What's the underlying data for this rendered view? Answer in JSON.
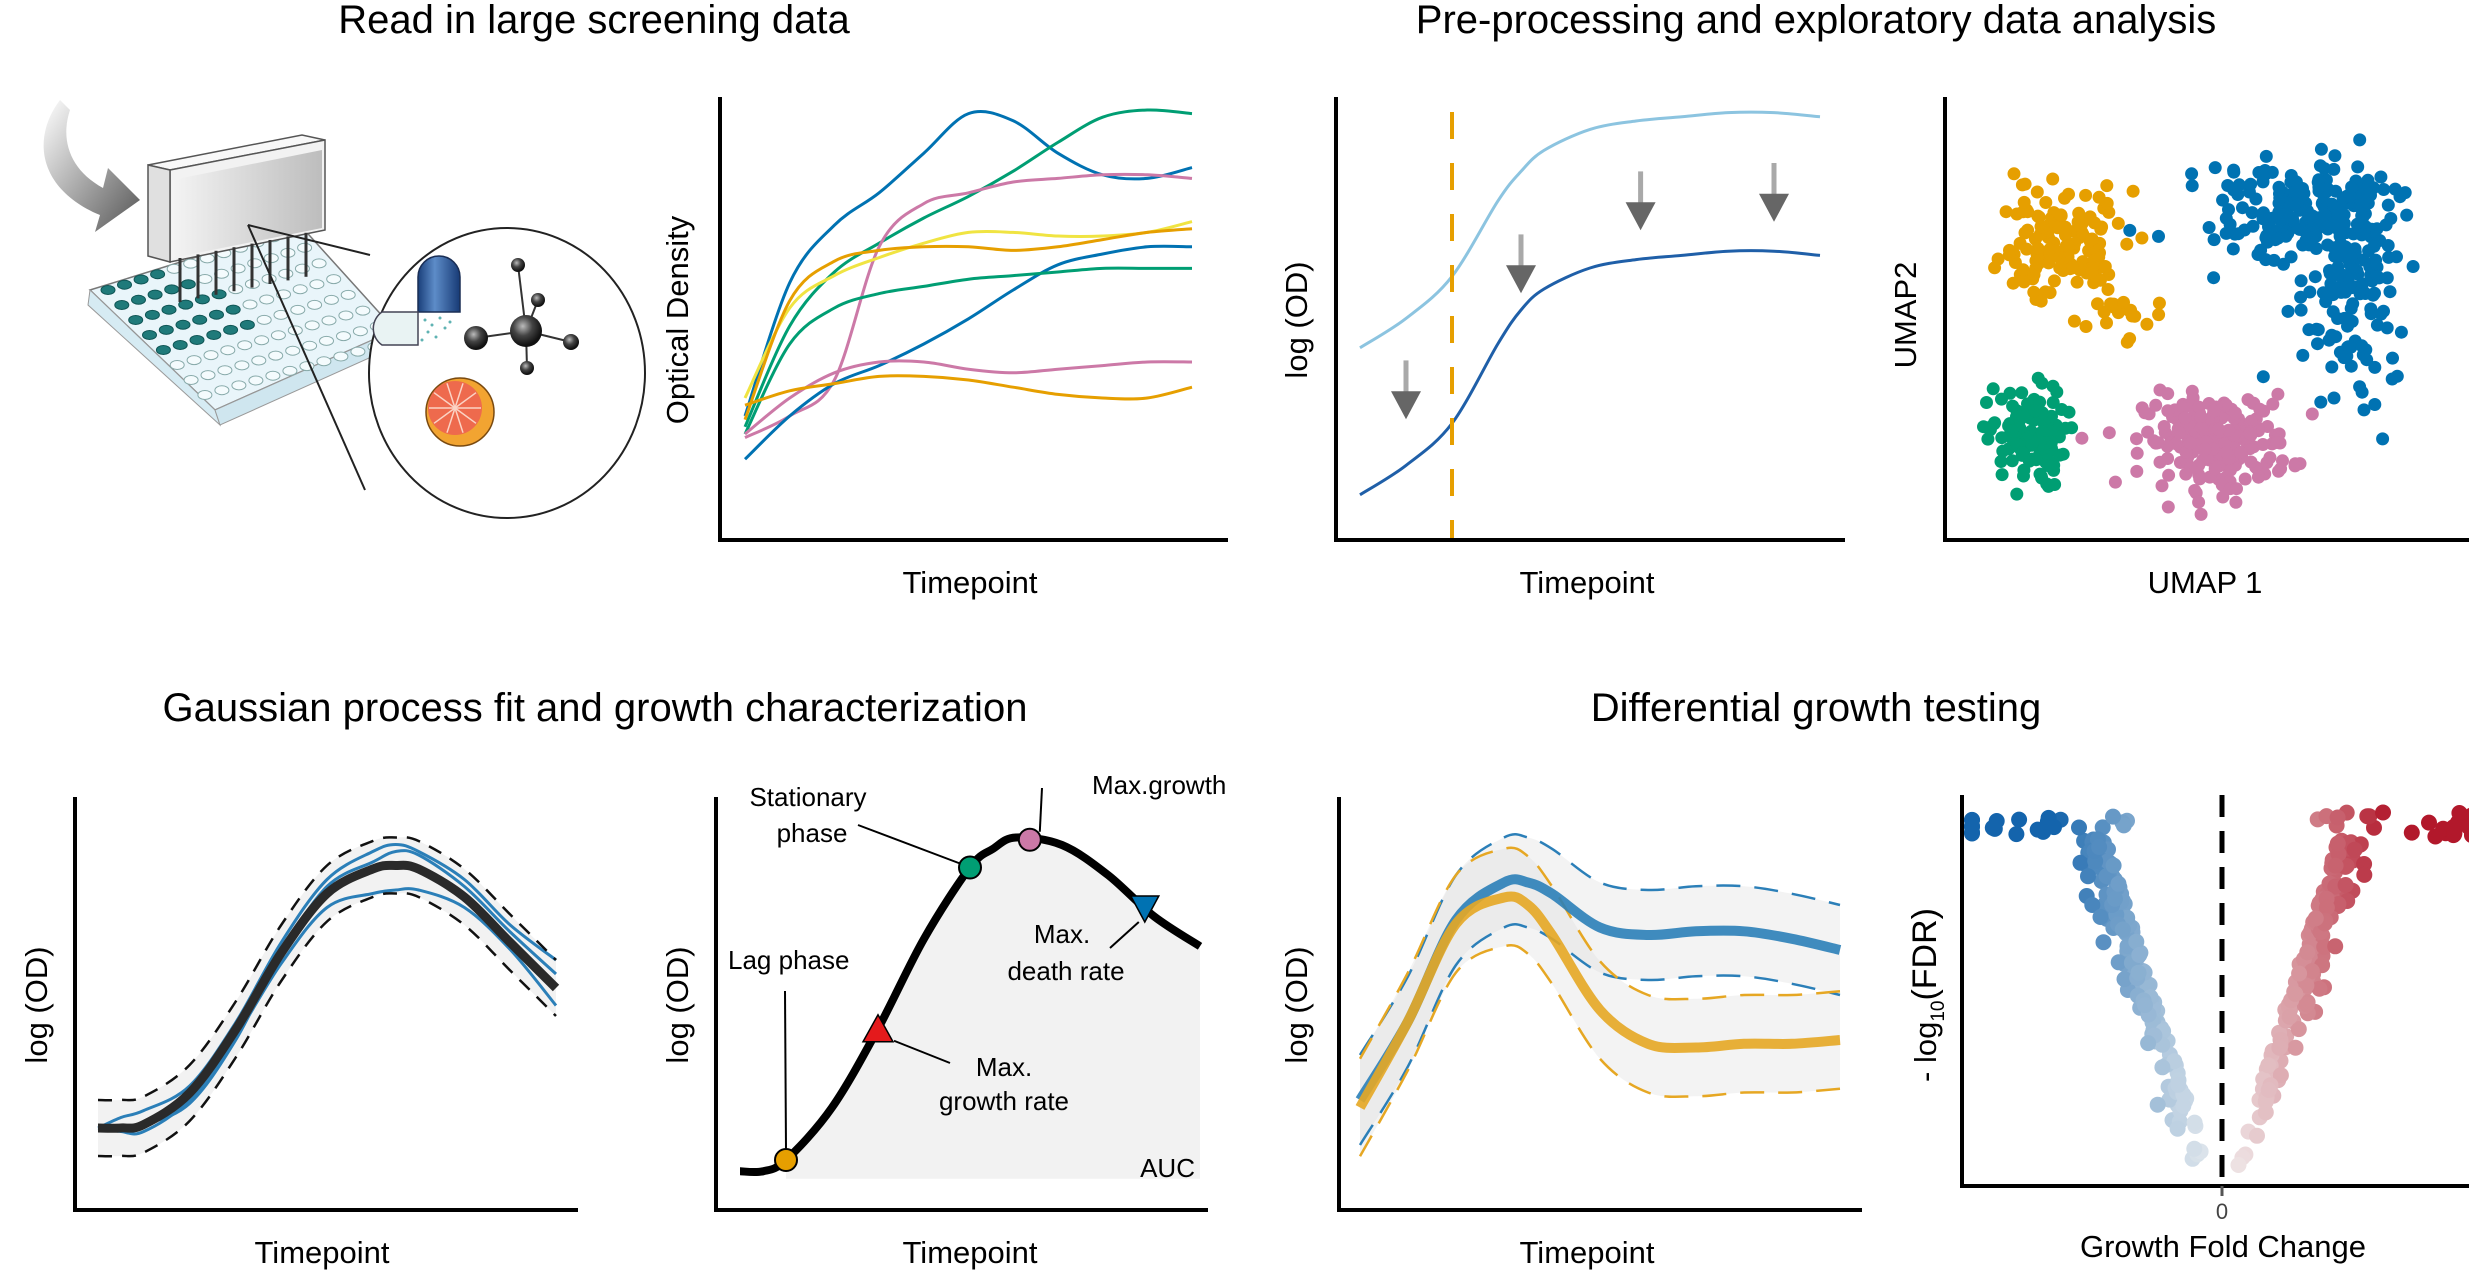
{
  "sections": [
    {
      "title": "Read in large screening data"
    },
    {
      "title": "Pre-processing and exploratory data analysis"
    },
    {
      "title": "Gaussian process fit and growth characterization"
    },
    {
      "title": "Differential growth testing"
    }
  ],
  "illustration": {
    "description": "Pin tool transferring compounds into a 96-well microplate; magnified view shows a capsule, a molecule and a grapefruit",
    "icons": [
      "curved-arrow-icon",
      "microplate-icon",
      "pin-replicator-icon",
      "capsule-icon",
      "molecule-icon",
      "grapefruit-icon"
    ]
  },
  "colors": {
    "blue": "#0072b2",
    "green": "#009e73",
    "orange": "#e69f00",
    "pink": "#cc79a7",
    "yellow": "#f0e442",
    "light_blue": "#8cc4e0",
    "dark_blue": "#1f5fa8",
    "band_grey": "#f2f2f2",
    "arrow_grey": "#666666",
    "red": "#e41a1c",
    "volcano_blue": "#1464ac",
    "volcano_red": "#b2182b"
  },
  "chart_data": [
    {
      "id": "raw-curves",
      "type": "line",
      "title": "",
      "xlabel": "Timepoint",
      "ylabel": "Optical Density",
      "xlim": [
        0,
        1
      ],
      "ylim": [
        0,
        1
      ],
      "grid": false,
      "x": [
        0,
        0.1,
        0.2,
        0.3,
        0.4,
        0.5,
        0.6,
        0.7,
        0.8,
        0.9,
        1.0
      ],
      "series": [
        {
          "name": "blue-1",
          "color": "#0072b2",
          "values": [
            0.15,
            0.52,
            0.68,
            0.77,
            0.88,
            0.99,
            0.97,
            0.88,
            0.82,
            0.81,
            0.84
          ]
        },
        {
          "name": "green-1",
          "color": "#009e73",
          "values": [
            0.12,
            0.4,
            0.55,
            0.63,
            0.7,
            0.76,
            0.83,
            0.91,
            0.98,
            1.0,
            0.99
          ]
        },
        {
          "name": "pink-1",
          "color": "#cc79a7",
          "values": [
            0.09,
            0.15,
            0.25,
            0.62,
            0.74,
            0.77,
            0.8,
            0.81,
            0.82,
            0.82,
            0.81
          ]
        },
        {
          "name": "yellow-1",
          "color": "#f0e442",
          "values": [
            0.2,
            0.45,
            0.54,
            0.59,
            0.63,
            0.66,
            0.66,
            0.65,
            0.65,
            0.66,
            0.69
          ]
        },
        {
          "name": "orange-1",
          "color": "#e69f00",
          "values": [
            0.14,
            0.47,
            0.58,
            0.61,
            0.62,
            0.62,
            0.61,
            0.62,
            0.64,
            0.66,
            0.67
          ]
        },
        {
          "name": "blue-2",
          "color": "#0072b2",
          "values": [
            0.03,
            0.15,
            0.24,
            0.29,
            0.35,
            0.42,
            0.5,
            0.57,
            0.6,
            0.62,
            0.62
          ]
        },
        {
          "name": "green-2",
          "color": "#009e73",
          "values": [
            0.1,
            0.35,
            0.45,
            0.49,
            0.51,
            0.53,
            0.54,
            0.55,
            0.56,
            0.56,
            0.56
          ]
        },
        {
          "name": "pink-2",
          "color": "#cc79a7",
          "values": [
            0.1,
            0.2,
            0.27,
            0.3,
            0.3,
            0.28,
            0.27,
            0.28,
            0.29,
            0.3,
            0.3
          ]
        },
        {
          "name": "orange-2",
          "color": "#e69f00",
          "values": [
            0.18,
            0.22,
            0.24,
            0.26,
            0.26,
            0.25,
            0.23,
            0.21,
            0.2,
            0.2,
            0.23
          ]
        }
      ]
    },
    {
      "id": "preprocessing",
      "type": "line",
      "title": "",
      "xlabel": "Timepoint",
      "ylabel": "log (OD)",
      "xlim": [
        0,
        1
      ],
      "ylim": [
        0,
        1
      ],
      "grid": false,
      "x": [
        0,
        0.1,
        0.2,
        0.3,
        0.35,
        0.4,
        0.5,
        0.6,
        0.7,
        0.8,
        0.9,
        1.0
      ],
      "series": [
        {
          "name": "raw",
          "color": "#8cc4e0",
          "values": [
            0.41,
            0.48,
            0.58,
            0.76,
            0.83,
            0.88,
            0.93,
            0.95,
            0.96,
            0.97,
            0.97,
            0.96
          ]
        },
        {
          "name": "normalized",
          "color": "#1f5fa8",
          "values": [
            0.06,
            0.13,
            0.23,
            0.42,
            0.5,
            0.55,
            0.6,
            0.62,
            0.63,
            0.64,
            0.64,
            0.63
          ]
        }
      ],
      "vline": {
        "x": 0.2,
        "color": "#e69f00",
        "style": "dashed"
      },
      "arrows": [
        {
          "x": 0.1,
          "y_from": 0.38,
          "y_to": 0.24
        },
        {
          "x": 0.35,
          "y_from": 0.68,
          "y_to": 0.54
        },
        {
          "x": 0.61,
          "y_from": 0.83,
          "y_to": 0.69
        },
        {
          "x": 0.9,
          "y_from": 0.85,
          "y_to": 0.71
        }
      ]
    },
    {
      "id": "umap",
      "type": "scatter",
      "title": "",
      "xlabel": "UMAP 1",
      "ylabel": "UMAP2",
      "xlim": [
        0,
        1
      ],
      "ylim": [
        0,
        1
      ],
      "grid": false,
      "clusters": [
        {
          "name": "orange",
          "color": "#e69f00",
          "center": [
            0.21,
            0.68
          ],
          "spread": [
            0.11,
            0.12
          ],
          "n": 150
        },
        {
          "name": "blue",
          "color": "#0072b2",
          "center": [
            0.7,
            0.76
          ],
          "spread": [
            0.16,
            0.1
          ],
          "n": 330
        },
        {
          "name": "green",
          "color": "#009e73",
          "center": [
            0.14,
            0.22
          ],
          "spread": [
            0.07,
            0.11
          ],
          "n": 110
        },
        {
          "name": "pink",
          "color": "#cc79a7",
          "center": [
            0.52,
            0.21
          ],
          "spread": [
            0.13,
            0.1
          ],
          "n": 230
        }
      ]
    },
    {
      "id": "gp-fit",
      "type": "line",
      "title": "",
      "xlabel": "Timepoint",
      "ylabel": "log (OD)",
      "xlim": [
        0,
        1
      ],
      "ylim": [
        0,
        1
      ],
      "grid": false,
      "x": [
        0,
        0.05,
        0.1,
        0.2,
        0.3,
        0.4,
        0.5,
        0.6,
        0.65,
        0.7,
        0.8,
        0.9,
        1.0
      ],
      "mean": [
        0.12,
        0.12,
        0.13,
        0.22,
        0.4,
        0.62,
        0.79,
        0.86,
        0.87,
        0.86,
        0.78,
        0.65,
        0.52
      ],
      "band_width": 0.08,
      "replicates": [
        {
          "offsets": [
            0.0,
            0.03,
            0.04,
            0.02,
            0.02,
            0.03,
            0.04,
            0.05,
            0.06,
            0.05,
            0.05,
            0.05,
            0.08
          ]
        },
        {
          "offsets": [
            0.0,
            0.0,
            0.0,
            -0.03,
            -0.03,
            0.0,
            0.02,
            0.02,
            0.04,
            0.04,
            0.03,
            0.03,
            0.04
          ]
        },
        {
          "offsets": [
            0.0,
            -0.01,
            -0.02,
            -0.02,
            -0.02,
            -0.03,
            -0.04,
            -0.07,
            -0.07,
            -0.06,
            -0.03,
            -0.02,
            -0.05
          ]
        }
      ]
    },
    {
      "id": "growth-characterization",
      "type": "line",
      "title": "",
      "xlabel": "Timepoint",
      "ylabel": "log (OD)",
      "xlim": [
        0,
        1
      ],
      "ylim": [
        0,
        1
      ],
      "grid": false,
      "x": [
        0,
        0.05,
        0.1,
        0.2,
        0.3,
        0.4,
        0.5,
        0.55,
        0.6,
        0.7,
        0.8,
        0.9,
        1.0
      ],
      "values": [
        0.05,
        0.05,
        0.08,
        0.22,
        0.43,
        0.67,
        0.86,
        0.91,
        0.94,
        0.92,
        0.84,
        0.73,
        0.65
      ],
      "area_label": "AUC",
      "markers": [
        {
          "label": "Lag phase",
          "x": 0.1,
          "shape": "circle",
          "color": "#e69f00"
        },
        {
          "label": "Max. growth rate",
          "x": 0.3,
          "shape": "triangle-up",
          "color": "#e41a1c"
        },
        {
          "label": "Stationary phase",
          "x": 0.5,
          "shape": "circle",
          "color": "#009e73"
        },
        {
          "label": "Max.growth",
          "x": 0.63,
          "shape": "circle",
          "color": "#cc79a7"
        },
        {
          "label": "Max. death rate",
          "x": 0.88,
          "shape": "triangle-down",
          "color": "#0072b2"
        }
      ],
      "annotations": {
        "lag": [
          "Lag phase"
        ],
        "max_growth_rate": [
          "Max.",
          "growth rate"
        ],
        "stationary": [
          "Stationary",
          "phase"
        ],
        "max_growth": [
          "Max.growth"
        ],
        "max_death_rate": [
          "Max.",
          "death rate"
        ]
      }
    },
    {
      "id": "differential",
      "type": "line",
      "title": "",
      "xlabel": "Timepoint",
      "ylabel": "log (OD)",
      "xlim": [
        0,
        1
      ],
      "ylim": [
        0,
        1
      ],
      "grid": false,
      "x": [
        0,
        0.1,
        0.2,
        0.3,
        0.35,
        0.4,
        0.5,
        0.6,
        0.7,
        0.8,
        0.9,
        1.0
      ],
      "series": [
        {
          "name": "condition-blue",
          "color": "#2b7fb8",
          "values": [
            0.24,
            0.45,
            0.72,
            0.82,
            0.82,
            0.79,
            0.7,
            0.68,
            0.69,
            0.69,
            0.67,
            0.64
          ]
        },
        {
          "name": "condition-orange",
          "color": "#e6a723",
          "values": [
            0.22,
            0.45,
            0.71,
            0.78,
            0.76,
            0.68,
            0.48,
            0.39,
            0.38,
            0.39,
            0.39,
            0.4
          ]
        }
      ],
      "band_width": [
        0.12,
        0.13
      ]
    },
    {
      "id": "volcano",
      "type": "scatter",
      "title": "",
      "xlabel": "Growth Fold Change",
      "ylabel": "- log10(FDR)",
      "ylabel_parts": {
        "prefix": "- log",
        "subscript": "10",
        "suffix": "(FDR)"
      },
      "x_ticks": [
        "0"
      ],
      "xlim": [
        -1,
        1
      ],
      "ylim": [
        0,
        1
      ],
      "grid": false,
      "vline": {
        "x": 0,
        "style": "dashed"
      },
      "n_points_per_side": 190,
      "low_color": "#f2f2f2",
      "neg_color": "#1464ac",
      "pos_color": "#b2182b"
    }
  ]
}
